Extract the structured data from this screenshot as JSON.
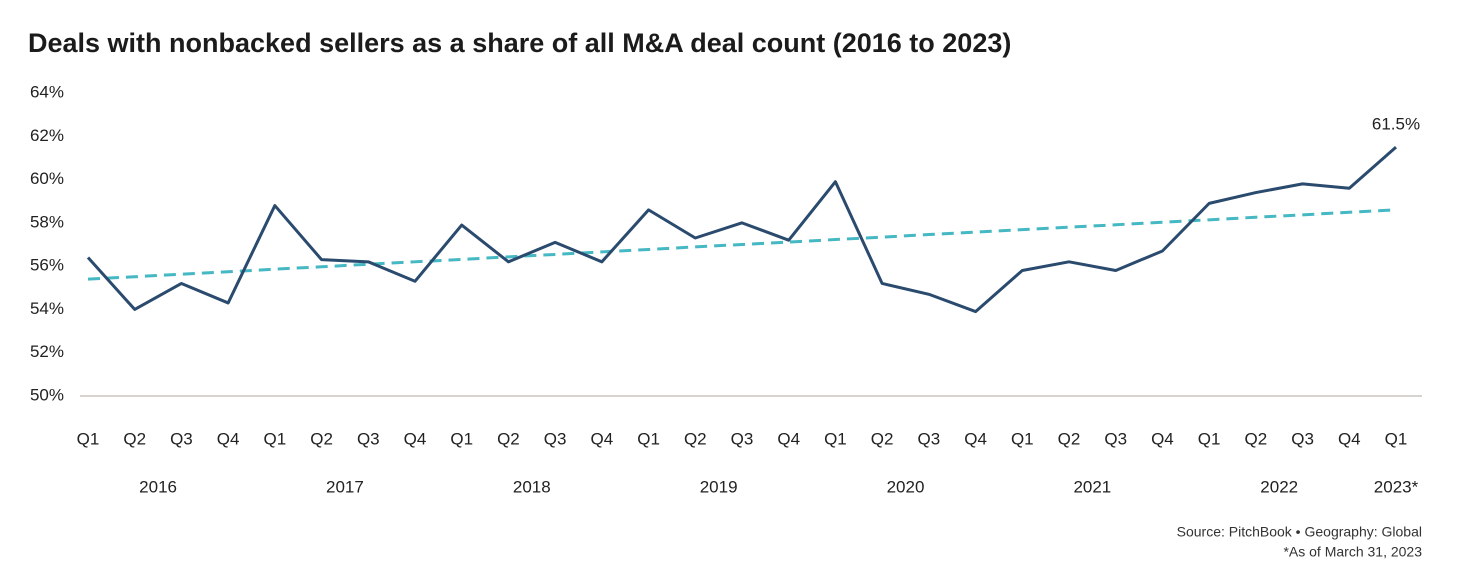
{
  "chart_data": {
    "type": "line",
    "title": "Deals with nonbacked sellers as a share of all M&A deal count (2016 to 2023)",
    "categories": [
      "Q1",
      "Q2",
      "Q3",
      "Q4",
      "Q1",
      "Q2",
      "Q3",
      "Q4",
      "Q1",
      "Q2",
      "Q3",
      "Q4",
      "Q1",
      "Q2",
      "Q3",
      "Q4",
      "Q1",
      "Q2",
      "Q3",
      "Q4",
      "Q1",
      "Q2",
      "Q3",
      "Q4",
      "Q1",
      "Q2",
      "Q3",
      "Q4",
      "Q1"
    ],
    "years": [
      "2016",
      "2017",
      "2018",
      "2019",
      "2020",
      "2021",
      "2022",
      "2023*"
    ],
    "series": [
      {
        "color": "#2a4a6e",
        "dashed": false,
        "values": [
          56.4,
          54.0,
          55.2,
          54.3,
          58.8,
          56.3,
          56.2,
          55.3,
          57.9,
          56.2,
          57.1,
          56.2,
          58.6,
          57.3,
          58.0,
          57.2,
          59.9,
          55.2,
          54.7,
          53.9,
          55.8,
          56.2,
          55.8,
          56.7,
          58.9,
          59.4,
          59.8,
          59.6,
          61.5
        ],
        "value_labels": [
          null,
          null,
          null,
          null,
          null,
          null,
          null,
          null,
          null,
          null,
          null,
          null,
          null,
          null,
          null,
          null,
          null,
          null,
          null,
          null,
          null,
          null,
          null,
          null,
          null,
          null,
          null,
          null,
          "61.5%"
        ]
      },
      {
        "color": "#45b8c4",
        "dashed": true,
        "values": [
          55.4,
          55.51,
          55.63,
          55.74,
          55.86,
          55.97,
          56.09,
          56.2,
          56.31,
          56.43,
          56.54,
          56.66,
          56.77,
          56.89,
          57.0,
          57.11,
          57.23,
          57.34,
          57.46,
          57.57,
          57.69,
          57.8,
          57.91,
          58.03,
          58.14,
          58.26,
          58.37,
          58.49,
          58.6
        ]
      }
    ],
    "ylim": [
      50,
      64
    ],
    "yticks": [
      {
        "value": 50,
        "label": "50%"
      },
      {
        "value": 52,
        "label": "52%"
      },
      {
        "value": 54,
        "label": "54%"
      },
      {
        "value": 56,
        "label": "56%"
      },
      {
        "value": 58,
        "label": "58%"
      },
      {
        "value": 60,
        "label": "60%"
      },
      {
        "value": 62,
        "label": "62%"
      },
      {
        "value": 64,
        "label": "64%"
      }
    ],
    "source": "Source: PitchBook  •  Geography: Global",
    "footnote": "*As of March 31, 2023"
  }
}
